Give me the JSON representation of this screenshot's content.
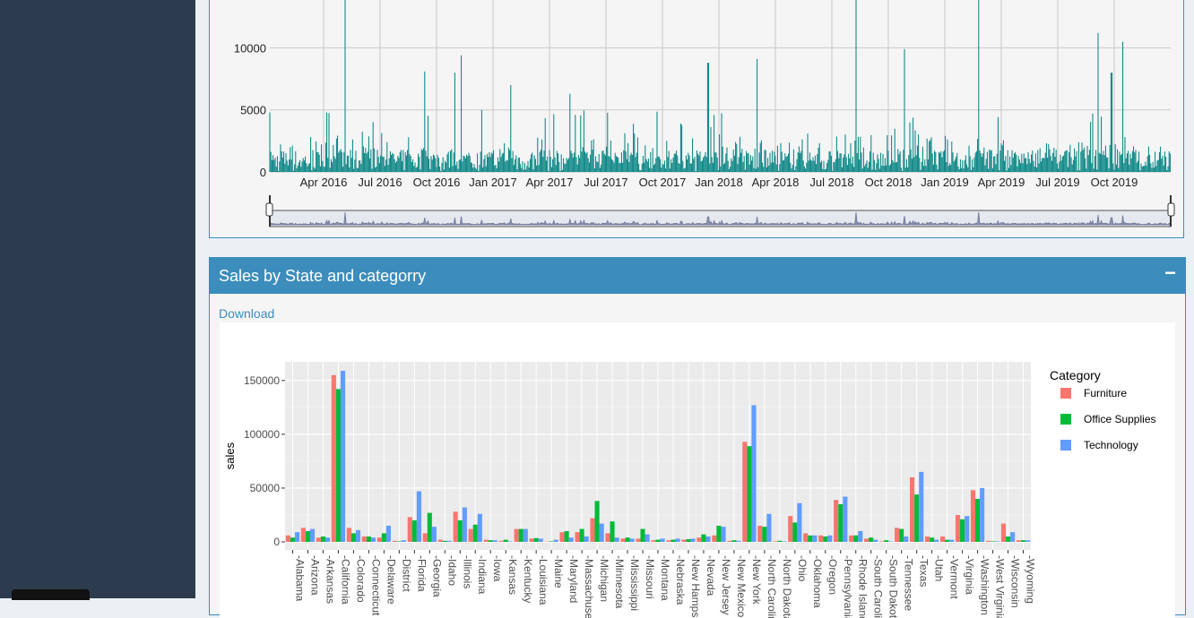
{
  "timeseries": {
    "y_ticks": [
      "10000",
      "5000",
      "0"
    ],
    "x_ticks": [
      "Apr 2016",
      "Jul 2016",
      "Oct 2016",
      "Jan 2017",
      "Apr 2017",
      "Jul 2017",
      "Oct 2017",
      "Jan 2018",
      "Apr 2018",
      "Jul 2018",
      "Oct 2018",
      "Jan 2019",
      "Apr 2019",
      "Jul 2019",
      "Oct 2019"
    ],
    "line_color": "#008080"
  },
  "panel2": {
    "title": "Sales by State and categorry",
    "collapse_label": "−",
    "download_label": "Download"
  },
  "chart_data": {
    "type": "bar",
    "title": "",
    "xlabel": "",
    "ylabel": "sales",
    "ylim": [
      0,
      160000
    ],
    "y_ticks": [
      "150000",
      "100000",
      "50000",
      "0"
    ],
    "legend_title": "Category",
    "legend_position": "right",
    "categories": [
      "Alabama",
      "Arizona",
      "Arkansas",
      "California",
      "Colorado",
      "Connecticut",
      "Delaware",
      "District of Columbia",
      "Florida",
      "Georgia",
      "Idaho",
      "Illinois",
      "Indiana",
      "Iowa",
      "Kansas",
      "Kentucky",
      "Louisiana",
      "Maine",
      "Maryland",
      "Massachusetts",
      "Michigan",
      "Minnesota",
      "Mississippi",
      "Missouri",
      "Montana",
      "Nebraska",
      "New Hampshire",
      "Nevada",
      "New Jersey",
      "New Mexico",
      "New York",
      "North Carolina",
      "North Dakota",
      "Ohio",
      "Oklahoma",
      "Oregon",
      "Pennsylvania",
      "Rhode Island",
      "South Carolina",
      "South Dakota",
      "Tennessee",
      "Texas",
      "Utah",
      "Vermont",
      "Virginia",
      "Washington",
      "West Virginia",
      "Wisconsin",
      "Wyoming"
    ],
    "category_labels": [
      "Alabama",
      "Arizona",
      "Arkansas",
      "California",
      "Colorado",
      "Connecticut",
      "Delaware",
      "District",
      "Florida",
      "Georgia",
      "Idaho",
      "Illinois",
      "Indiana",
      "Iowa",
      "Kansas",
      "Kentucky",
      "Louisiana",
      "Maine",
      "Maryland",
      "Massachusetts",
      "Michigan",
      "Minnesota",
      "Mississippi",
      "Missouri",
      "Montana",
      "Nebraska",
      "New Hampshire",
      "Nevada",
      "New Jersey",
      "New Mexico",
      "New York",
      "North Carolina",
      "North Dakota",
      "Ohio",
      "Oklahoma",
      "Oregon",
      "Pennsylvania",
      "Rhode Island",
      "South Carolina",
      "South Dakota",
      "Tennessee",
      "Texas",
      "Utah",
      "Vermont",
      "Virginia",
      "Washington",
      "West Virginia",
      "Wisconsin",
      "Wyoming"
    ],
    "series": [
      {
        "name": "Furniture",
        "color": "#F8766D",
        "values": [
          6000,
          13000,
          4000,
          155000,
          13000,
          5000,
          4000,
          1000,
          23000,
          8000,
          2000,
          28000,
          12000,
          2000,
          1000,
          12000,
          3000,
          300,
          9000,
          9000,
          22000,
          8000,
          3000,
          3000,
          1500,
          1500,
          2000,
          4000,
          6000,
          1000,
          93000,
          15000,
          500,
          24000,
          8000,
          6000,
          39000,
          6000,
          3000,
          500,
          13000,
          60000,
          5000,
          5000,
          25000,
          48000,
          1000,
          17000,
          1500
        ]
      },
      {
        "name": "Office Supplies",
        "color": "#00BA38",
        "values": [
          4000,
          10000,
          5000,
          142000,
          8000,
          5000,
          8000,
          500,
          20000,
          27000,
          1000,
          20000,
          16000,
          1500,
          2000,
          12000,
          3500,
          500,
          10000,
          12000,
          38000,
          19000,
          4000,
          12000,
          2000,
          2000,
          2500,
          7000,
          15000,
          1500,
          89000,
          14000,
          1000,
          18000,
          6000,
          5000,
          35000,
          6000,
          4000,
          1500,
          12000,
          44000,
          4000,
          2000,
          21000,
          40000,
          500,
          5000,
          1500
        ]
      },
      {
        "name": "Technology",
        "color": "#619CFF",
        "values": [
          9000,
          12000,
          4000,
          159000,
          11000,
          4000,
          15000,
          1500,
          47000,
          14000,
          1000,
          32000,
          26000,
          1500,
          500,
          12000,
          3000,
          2000,
          4000,
          5000,
          17000,
          4000,
          3000,
          7000,
          3000,
          3000,
          3000,
          5000,
          14000,
          1000,
          127000,
          26000,
          500,
          36000,
          6000,
          6000,
          42000,
          10000,
          2000,
          500,
          5000,
          65000,
          2000,
          2000,
          24000,
          50000,
          500,
          9000,
          1500
        ]
      }
    ]
  }
}
